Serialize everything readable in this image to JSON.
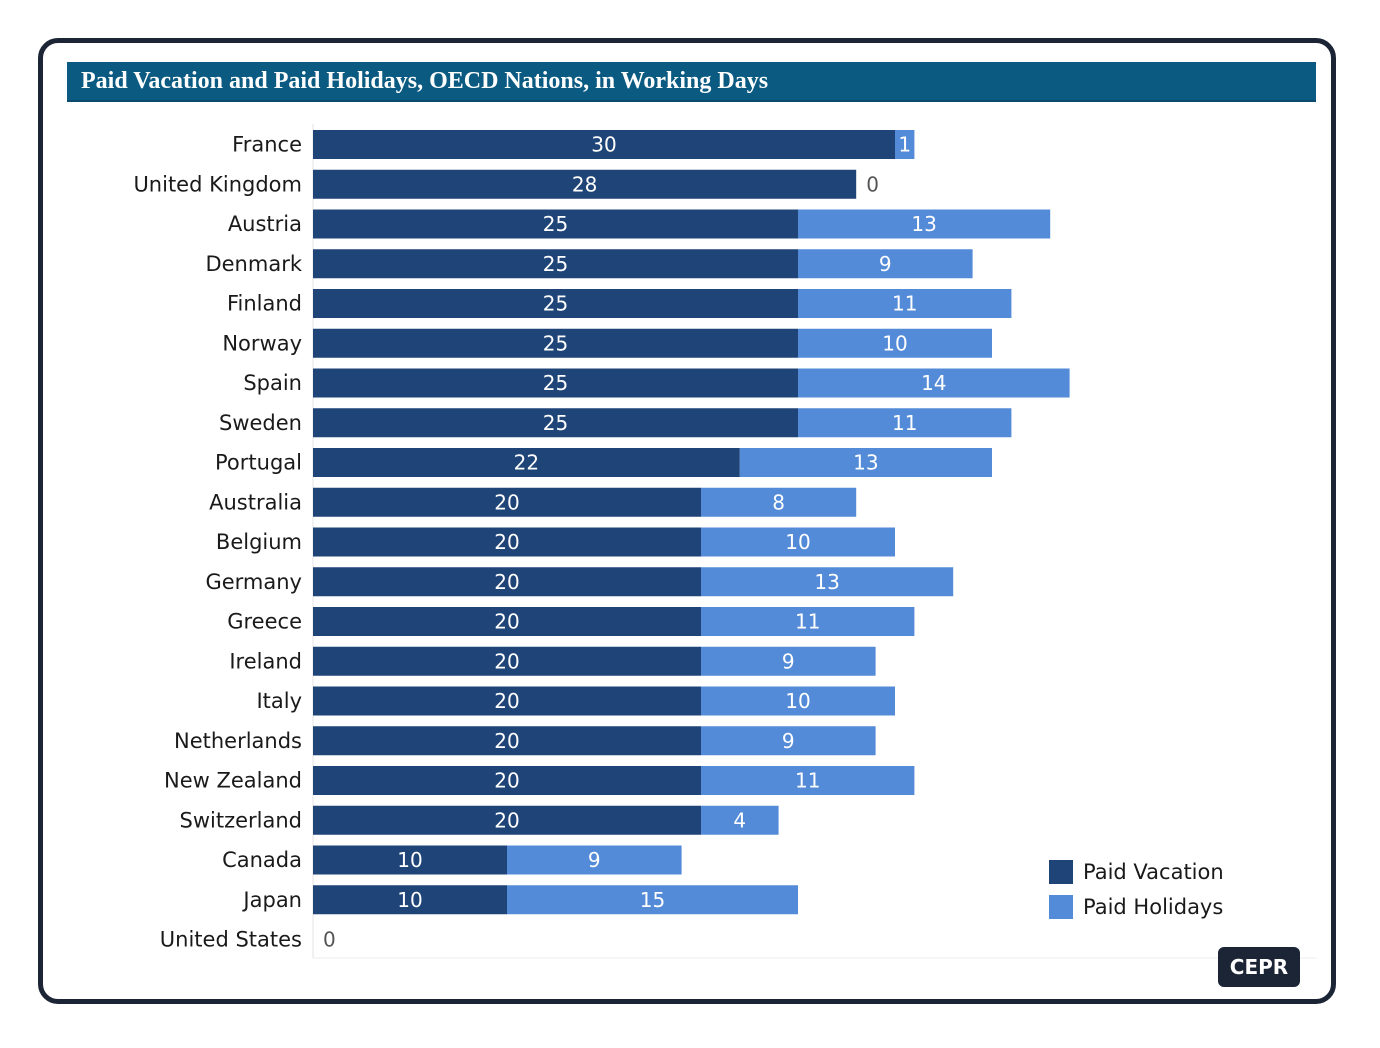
{
  "chart_data": {
    "type": "bar",
    "orientation": "horizontal",
    "stacked": true,
    "title": "Paid Vacation and Paid Holidays, OECD Nations, in Working Days",
    "categories": [
      "France",
      "United Kingdom",
      "Austria",
      "Denmark",
      "Finland",
      "Norway",
      "Spain",
      "Sweden",
      "Portugal",
      "Australia",
      "Belgium",
      "Germany",
      "Greece",
      "Ireland",
      "Italy",
      "Netherlands",
      "New Zealand",
      "Switzerland",
      "Canada",
      "Japan",
      "United States"
    ],
    "series": [
      {
        "name": "Paid Vacation",
        "color": "#1f4478",
        "values": [
          30,
          28,
          25,
          25,
          25,
          25,
          25,
          25,
          22,
          20,
          20,
          20,
          20,
          20,
          20,
          20,
          20,
          20,
          10,
          10,
          0
        ]
      },
      {
        "name": "Paid Holidays",
        "color": "#548bd8",
        "values": [
          1,
          0,
          13,
          9,
          11,
          10,
          14,
          11,
          13,
          8,
          10,
          13,
          11,
          9,
          10,
          9,
          11,
          4,
          9,
          15,
          0
        ]
      }
    ],
    "xlim": [
      0,
      50
    ],
    "grid": false,
    "legend_position": "bottom-right",
    "xlabel": "",
    "ylabel": ""
  },
  "logo": {
    "text": "CEPR"
  }
}
